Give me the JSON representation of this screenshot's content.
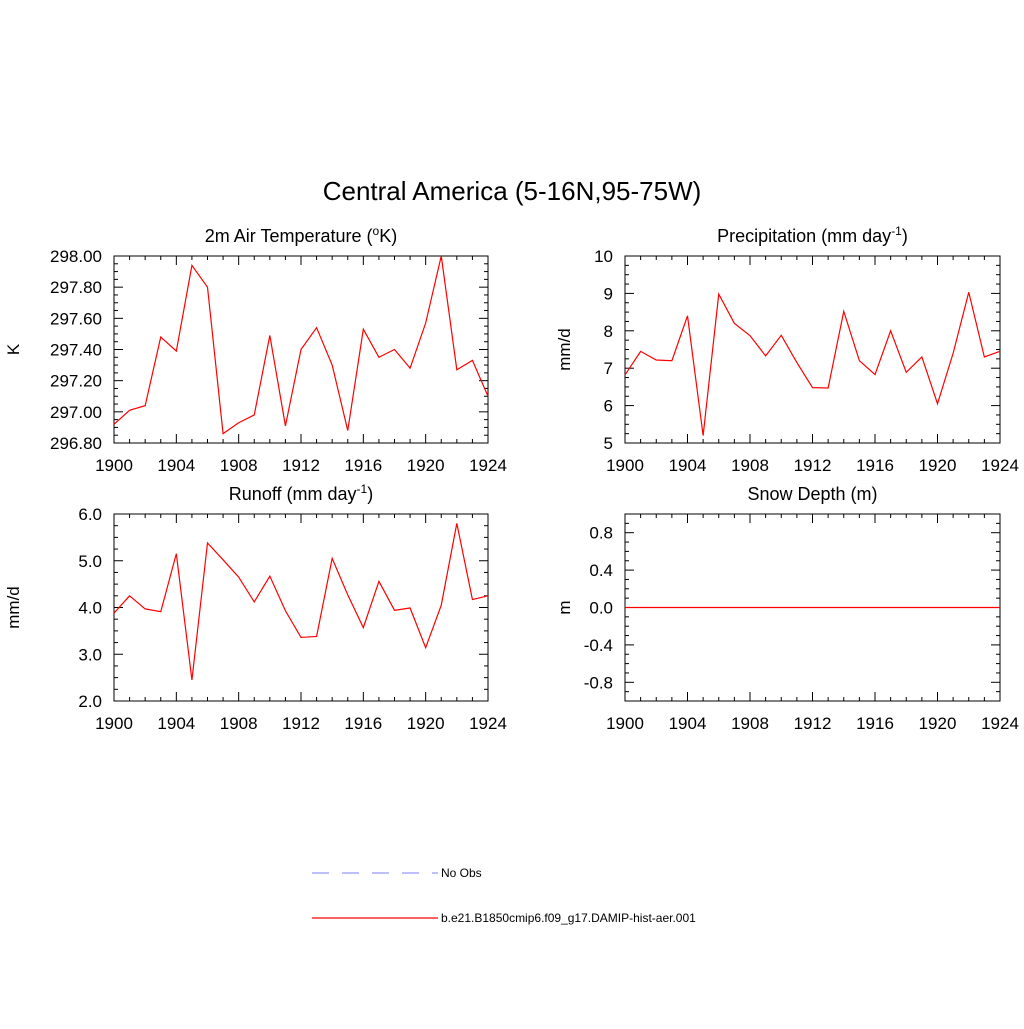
{
  "figure": {
    "title": "Central America (5-16N,95-75W)"
  },
  "colors": {
    "model_line": "#ff0000",
    "obs_line": "#9999ff",
    "axes": "#000000"
  },
  "chart_data": [
    {
      "id": "tas",
      "type": "line",
      "title": "2m Air Temperature (",
      "title_sup": "o",
      "title_after": "K)",
      "ylabel": "K",
      "xlim": [
        1900,
        1924
      ],
      "ylim": [
        296.8,
        298.0
      ],
      "xticks": [
        1900,
        1904,
        1908,
        1912,
        1916,
        1920,
        1924
      ],
      "xtick_labels": [
        "1900",
        "1904",
        "1908",
        "1912",
        "1916",
        "1920",
        "1924"
      ],
      "yticks": [
        296.8,
        297.0,
        297.2,
        297.4,
        297.6,
        297.8,
        298.0
      ],
      "ytick_labels": [
        "296.80",
        "297.00",
        "297.20",
        "297.40",
        "297.60",
        "297.80",
        "298.00"
      ],
      "x": [
        1900,
        1901,
        1902,
        1903,
        1904,
        1905,
        1906,
        1907,
        1908,
        1909,
        1910,
        1911,
        1912,
        1913,
        1914,
        1915,
        1916,
        1917,
        1918,
        1919,
        1920,
        1921,
        1922,
        1923,
        1924
      ],
      "series": [
        {
          "name": "b.e21.B1850cmip6.f09_g17.DAMIP-hist-aer.001",
          "values": [
            296.92,
            297.01,
            297.04,
            297.48,
            297.39,
            297.94,
            297.8,
            296.86,
            296.93,
            296.98,
            297.49,
            296.91,
            297.4,
            297.54,
            297.3,
            296.88,
            297.53,
            297.35,
            297.4,
            297.28,
            297.57,
            298.0,
            297.27,
            297.33,
            297.1
          ]
        }
      ]
    },
    {
      "id": "pr",
      "type": "line",
      "title": "Precipitation (mm day",
      "title_sup": "-1",
      "title_after": ")",
      "ylabel": "mm/d",
      "xlim": [
        1900,
        1924
      ],
      "ylim": [
        5,
        10
      ],
      "xticks": [
        1900,
        1904,
        1908,
        1912,
        1916,
        1920,
        1924
      ],
      "xtick_labels": [
        "1900",
        "1904",
        "1908",
        "1912",
        "1916",
        "1920",
        "1924"
      ],
      "yticks": [
        5,
        6,
        7,
        8,
        9,
        10
      ],
      "ytick_labels": [
        "5",
        "6",
        "7",
        "8",
        "9",
        "10"
      ],
      "x": [
        1900,
        1901,
        1902,
        1903,
        1904,
        1905,
        1906,
        1907,
        1908,
        1909,
        1910,
        1911,
        1912,
        1913,
        1914,
        1915,
        1916,
        1917,
        1918,
        1919,
        1920,
        1921,
        1922,
        1923,
        1924
      ],
      "series": [
        {
          "name": "b.e21.B1850cmip6.f09_g17.DAMIP-hist-aer.001",
          "values": [
            6.82,
            7.45,
            7.22,
            7.2,
            8.4,
            5.2,
            8.98,
            8.2,
            7.87,
            7.33,
            7.88,
            7.15,
            6.48,
            6.47,
            8.52,
            7.2,
            6.83,
            8.0,
            6.89,
            7.3,
            6.05,
            7.4,
            9.03,
            7.3,
            7.45
          ]
        }
      ]
    },
    {
      "id": "runoff",
      "type": "line",
      "title": "Runoff (mm day",
      "title_sup": "-1",
      "title_after": ")",
      "ylabel": "mm/d",
      "xlim": [
        1900,
        1924
      ],
      "ylim": [
        2.0,
        6.0
      ],
      "xticks": [
        1900,
        1904,
        1908,
        1912,
        1916,
        1920,
        1924
      ],
      "xtick_labels": [
        "1900",
        "1904",
        "1908",
        "1912",
        "1916",
        "1920",
        "1924"
      ],
      "yticks": [
        2.0,
        3.0,
        4.0,
        5.0,
        6.0
      ],
      "ytick_labels": [
        "2.0",
        "3.0",
        "4.0",
        "5.0",
        "6.0"
      ],
      "x": [
        1900,
        1901,
        1902,
        1903,
        1904,
        1905,
        1906,
        1907,
        1908,
        1909,
        1910,
        1911,
        1912,
        1913,
        1914,
        1915,
        1916,
        1917,
        1918,
        1919,
        1920,
        1921,
        1922,
        1923,
        1924
      ],
      "series": [
        {
          "name": "b.e21.B1850cmip6.f09_g17.DAMIP-hist-aer.001",
          "values": [
            3.88,
            4.25,
            3.97,
            3.91,
            5.15,
            2.45,
            5.38,
            5.02,
            4.65,
            4.12,
            4.67,
            3.93,
            3.36,
            3.38,
            5.05,
            4.27,
            3.57,
            4.56,
            3.94,
            3.99,
            3.14,
            4.05,
            5.8,
            4.17,
            4.25
          ]
        }
      ]
    },
    {
      "id": "snowd",
      "type": "line",
      "title": "Snow Depth (m)",
      "title_sup": "",
      "title_after": "",
      "ylabel": "m",
      "xlim": [
        1900,
        1924
      ],
      "ylim": [
        -1.0,
        1.0
      ],
      "xticks": [
        1900,
        1904,
        1908,
        1912,
        1916,
        1920,
        1924
      ],
      "xtick_labels": [
        "1900",
        "1904",
        "1908",
        "1912",
        "1916",
        "1920",
        "1924"
      ],
      "yticks": [
        -0.8,
        -0.4,
        0.0,
        0.4,
        0.8
      ],
      "ytick_labels": [
        "-0.8",
        "-0.4",
        "0.0",
        "0.4",
        "0.8"
      ],
      "x": [
        1900,
        1924
      ],
      "series": [
        {
          "name": "b.e21.B1850cmip6.f09_g17.DAMIP-hist-aer.001",
          "values": [
            0.0,
            0.0
          ]
        }
      ]
    }
  ],
  "legend": {
    "items": [
      {
        "label": "No Obs",
        "style": "dashed",
        "color": "#9999ff"
      },
      {
        "label": "b.e21.B1850cmip6.f09_g17.DAMIP-hist-aer.001",
        "style": "solid",
        "color": "#ff0000"
      }
    ]
  }
}
